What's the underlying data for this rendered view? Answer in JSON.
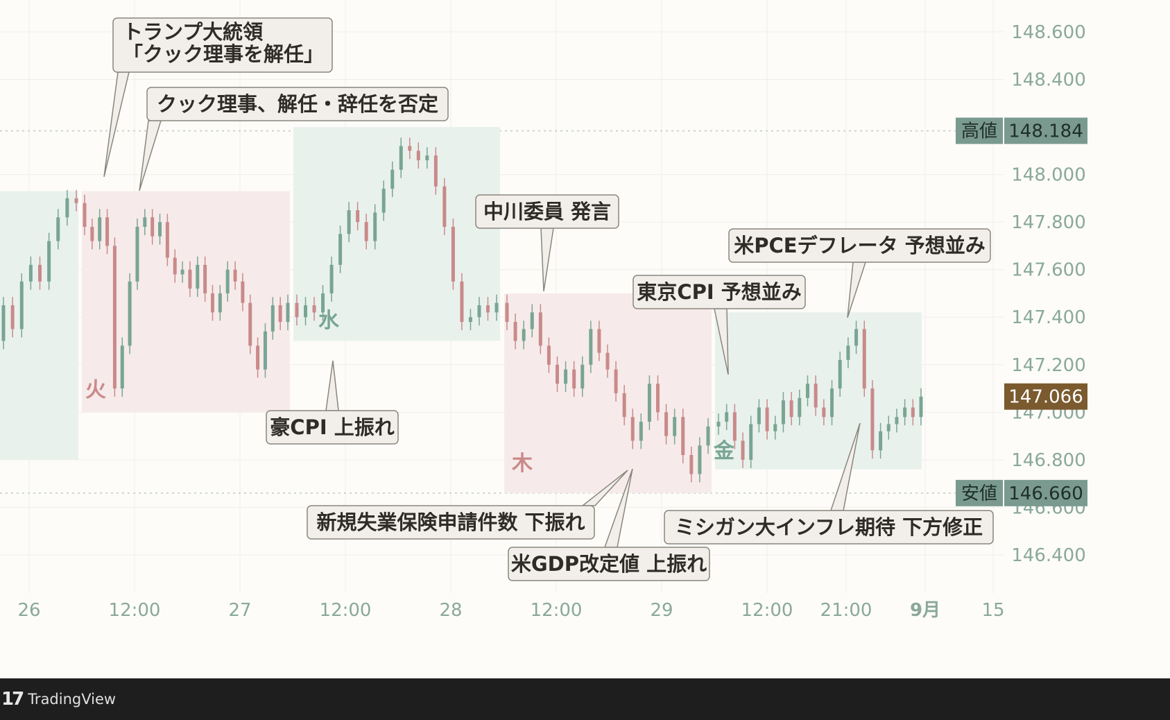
{
  "chart_data": {
    "type": "candlestick",
    "ylim": [
      146.2,
      148.7
    ],
    "y_ticks": [
      "148.600",
      "148.400",
      "148.000",
      "147.800",
      "147.600",
      "147.400",
      "147.200",
      "147.000",
      "146.800",
      "146.600",
      "146.400"
    ],
    "x_ticks": [
      "26",
      "12:00",
      "27",
      "12:00",
      "28",
      "12:00",
      "29",
      "12:00",
      "21:00",
      "9月",
      "15"
    ],
    "high_marker": {
      "label": "高値",
      "value": 148.184,
      "value_label": "148.184"
    },
    "low_marker": {
      "label": "安値",
      "value": 146.66,
      "value_label": "146.660"
    },
    "current_price": {
      "value": 147.066,
      "value_label": "147.066"
    },
    "grid": true,
    "days": [
      {
        "label": "火",
        "color": "#c98a8a",
        "y_range": [
          147.0,
          147.93
        ]
      },
      {
        "label": "水",
        "color": "#79a593",
        "y_range": [
          147.3,
          148.2
        ]
      },
      {
        "label": "木",
        "color": "#c98a8a",
        "y_range": [
          146.66,
          147.5
        ]
      },
      {
        "label": "金",
        "color": "#79a593",
        "y_range": [
          146.76,
          147.42
        ]
      }
    ],
    "callouts": [
      "トランプ大統領\n「クック理事を解任」",
      "クック理事、解任・辞任を否定",
      "豪CPI 上振れ",
      "中川委員 発言",
      "東京CPI 予想並み",
      "米PCEデフレータ 予想並み",
      "新規失業保険申請件数 下振れ",
      "米GDP改定値 上振れ",
      "ミシガン大インフレ期待 下方修正"
    ],
    "series": [
      {
        "segment": "Mon",
        "points": [
          [
            147.3,
            147.45
          ],
          [
            147.45,
            147.35
          ],
          [
            147.35,
            147.55
          ],
          [
            147.55,
            147.62
          ],
          [
            147.62,
            147.55
          ],
          [
            147.55,
            147.72
          ],
          [
            147.72,
            147.82
          ],
          [
            147.82,
            147.9
          ],
          [
            147.9,
            147.88
          ]
        ]
      },
      {
        "segment": "Tue",
        "points": [
          [
            147.88,
            147.78
          ],
          [
            147.78,
            147.72
          ],
          [
            147.72,
            147.82
          ],
          [
            147.82,
            147.7
          ],
          [
            147.7,
            147.1
          ],
          [
            147.1,
            147.28
          ],
          [
            147.28,
            147.55
          ],
          [
            147.55,
            147.78
          ],
          [
            147.78,
            147.82
          ],
          [
            147.82,
            147.74
          ],
          [
            147.74,
            147.8
          ],
          [
            147.8,
            147.65
          ],
          [
            147.65,
            147.58
          ],
          [
            147.58,
            147.6
          ],
          [
            147.6,
            147.52
          ],
          [
            147.52,
            147.62
          ],
          [
            147.62,
            147.5
          ],
          [
            147.5,
            147.42
          ],
          [
            147.42,
            147.5
          ],
          [
            147.5,
            147.6
          ],
          [
            147.6,
            147.55
          ],
          [
            147.55,
            147.46
          ],
          [
            147.46,
            147.28
          ],
          [
            147.28,
            147.18
          ],
          [
            147.18,
            147.34
          ],
          [
            147.34,
            147.45
          ],
          [
            147.45,
            147.38
          ],
          [
            147.38,
            147.46
          ]
        ]
      },
      {
        "segment": "Wed",
        "points": [
          [
            147.46,
            147.4
          ],
          [
            147.4,
            147.45
          ],
          [
            147.45,
            147.42
          ],
          [
            147.42,
            147.5
          ],
          [
            147.5,
            147.62
          ],
          [
            147.62,
            147.75
          ],
          [
            147.75,
            147.85
          ],
          [
            147.85,
            147.8
          ],
          [
            147.8,
            147.72
          ],
          [
            147.72,
            147.84
          ],
          [
            147.84,
            147.94
          ],
          [
            147.94,
            148.02
          ],
          [
            148.02,
            148.12
          ],
          [
            148.12,
            148.1
          ],
          [
            148.1,
            148.06
          ],
          [
            148.06,
            148.08
          ],
          [
            148.08,
            147.95
          ],
          [
            147.95,
            147.78
          ],
          [
            147.78,
            147.55
          ],
          [
            147.55,
            147.38
          ],
          [
            147.38,
            147.4
          ],
          [
            147.4,
            147.45
          ],
          [
            147.45,
            147.42
          ],
          [
            147.42,
            147.46
          ]
        ]
      },
      {
        "segment": "Thu",
        "points": [
          [
            147.46,
            147.38
          ],
          [
            147.38,
            147.3
          ],
          [
            147.3,
            147.35
          ],
          [
            147.35,
            147.42
          ],
          [
            147.42,
            147.28
          ],
          [
            147.28,
            147.2
          ],
          [
            147.2,
            147.12
          ],
          [
            147.12,
            147.18
          ],
          [
            147.18,
            147.1
          ],
          [
            147.1,
            147.2
          ],
          [
            147.2,
            147.35
          ],
          [
            147.35,
            147.25
          ],
          [
            147.25,
            147.18
          ],
          [
            147.18,
            147.08
          ],
          [
            147.08,
            146.98
          ],
          [
            146.98,
            146.88
          ],
          [
            146.88,
            146.96
          ],
          [
            146.96,
            147.12
          ],
          [
            147.12,
            147.0
          ],
          [
            147.0,
            146.9
          ],
          [
            146.9,
            146.98
          ],
          [
            146.98,
            146.82
          ],
          [
            146.82,
            146.74
          ],
          [
            146.74,
            146.86
          ],
          [
            146.86,
            146.94
          ]
        ]
      },
      {
        "segment": "Fri",
        "points": [
          [
            146.94,
            146.96
          ],
          [
            146.96,
            147.0
          ],
          [
            147.0,
            146.88
          ],
          [
            146.88,
            146.8
          ],
          [
            146.8,
            146.95
          ],
          [
            146.95,
            147.02
          ],
          [
            147.02,
            146.92
          ],
          [
            146.92,
            146.95
          ],
          [
            146.95,
            147.05
          ],
          [
            147.05,
            146.98
          ],
          [
            146.98,
            147.06
          ],
          [
            147.06,
            147.12
          ],
          [
            147.12,
            147.02
          ],
          [
            147.02,
            146.98
          ],
          [
            146.98,
            147.1
          ],
          [
            147.1,
            147.22
          ],
          [
            147.22,
            147.28
          ],
          [
            147.28,
            147.35
          ],
          [
            147.35,
            147.1
          ],
          [
            147.1,
            146.84
          ],
          [
            146.84,
            146.92
          ],
          [
            146.92,
            146.95
          ],
          [
            146.95,
            146.98
          ],
          [
            146.98,
            147.02
          ],
          [
            147.02,
            146.98
          ],
          [
            146.98,
            147.066
          ]
        ]
      }
    ]
  },
  "footer": {
    "brand": "TradingView",
    "logo": "tradingview-logo-icon"
  },
  "colors": {
    "up": "#79a593",
    "down": "#c98a8a",
    "up_band": "#e9f1ed",
    "down_band": "#f6ebea",
    "axis_text": "#8aa89c",
    "marker_bg": "#7a9a8f",
    "current_bg": "#7a5a2e"
  }
}
